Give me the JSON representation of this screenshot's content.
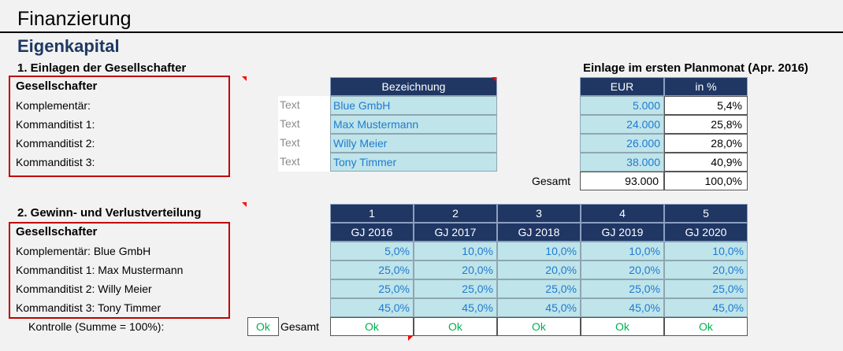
{
  "title": "Finanzierung",
  "subtitle": "Eigenkapital",
  "section1": {
    "heading": "1. Einlagen der Gesellschafter",
    "right_heading": "Einlage im ersten Planmonat (Apr. 2016)",
    "group_header": "Gesellschafter",
    "col_bezeichnung": "Bezeichnung",
    "col_eur": "EUR",
    "col_pct": "in %",
    "rows": [
      {
        "label": "Komplementär:",
        "type": "Text",
        "name": "Blue GmbH",
        "eur": "5.000",
        "pct": "5,4%"
      },
      {
        "label": "Kommanditist 1:",
        "type": "Text",
        "name": "Max Mustermann",
        "eur": "24.000",
        "pct": "25,8%"
      },
      {
        "label": "Kommanditist 2:",
        "type": "Text",
        "name": "Willy Meier",
        "eur": "26.000",
        "pct": "28,0%"
      },
      {
        "label": "Kommanditist 3:",
        "type": "Text",
        "name": "Tony Timmer",
        "eur": "38.000",
        "pct": "40,9%"
      }
    ],
    "total_label": "Gesamt",
    "total_eur": "93.000",
    "total_pct": "100,0%"
  },
  "section2": {
    "heading": "2. Gewinn- und Verlustverteilung",
    "group_header": "Gesellschafter",
    "col_numbers": [
      "1",
      "2",
      "3",
      "4",
      "5"
    ],
    "col_years": [
      "GJ 2016",
      "GJ 2017",
      "GJ 2018",
      "GJ 2019",
      "GJ 2020"
    ],
    "rows": [
      {
        "label": "Komplementär: Blue GmbH",
        "values": [
          "5,0%",
          "10,0%",
          "10,0%",
          "10,0%",
          "10,0%"
        ]
      },
      {
        "label": "Kommanditist 1: Max Mustermann",
        "values": [
          "25,0%",
          "20,0%",
          "20,0%",
          "20,0%",
          "20,0%"
        ]
      },
      {
        "label": "Kommanditist 2: Willy Meier",
        "values": [
          "25,0%",
          "25,0%",
          "25,0%",
          "25,0%",
          "25,0%"
        ]
      },
      {
        "label": "Kommanditist 3: Tony Timmer",
        "values": [
          "45,0%",
          "45,0%",
          "45,0%",
          "45,0%",
          "45,0%"
        ]
      }
    ],
    "control_label": "Kontrolle (Summe = 100%):",
    "control_ok": "Ok",
    "total_label": "Gesamt",
    "control_values": [
      "Ok",
      "Ok",
      "Ok",
      "Ok",
      "Ok"
    ]
  },
  "colors": {
    "navy": "#203764",
    "cyan": "#bfe4ea",
    "blue_text": "#1f7bd0",
    "ok_green": "#00b050",
    "red_marker": "#ff0000",
    "subtitle": "#1f3864"
  }
}
